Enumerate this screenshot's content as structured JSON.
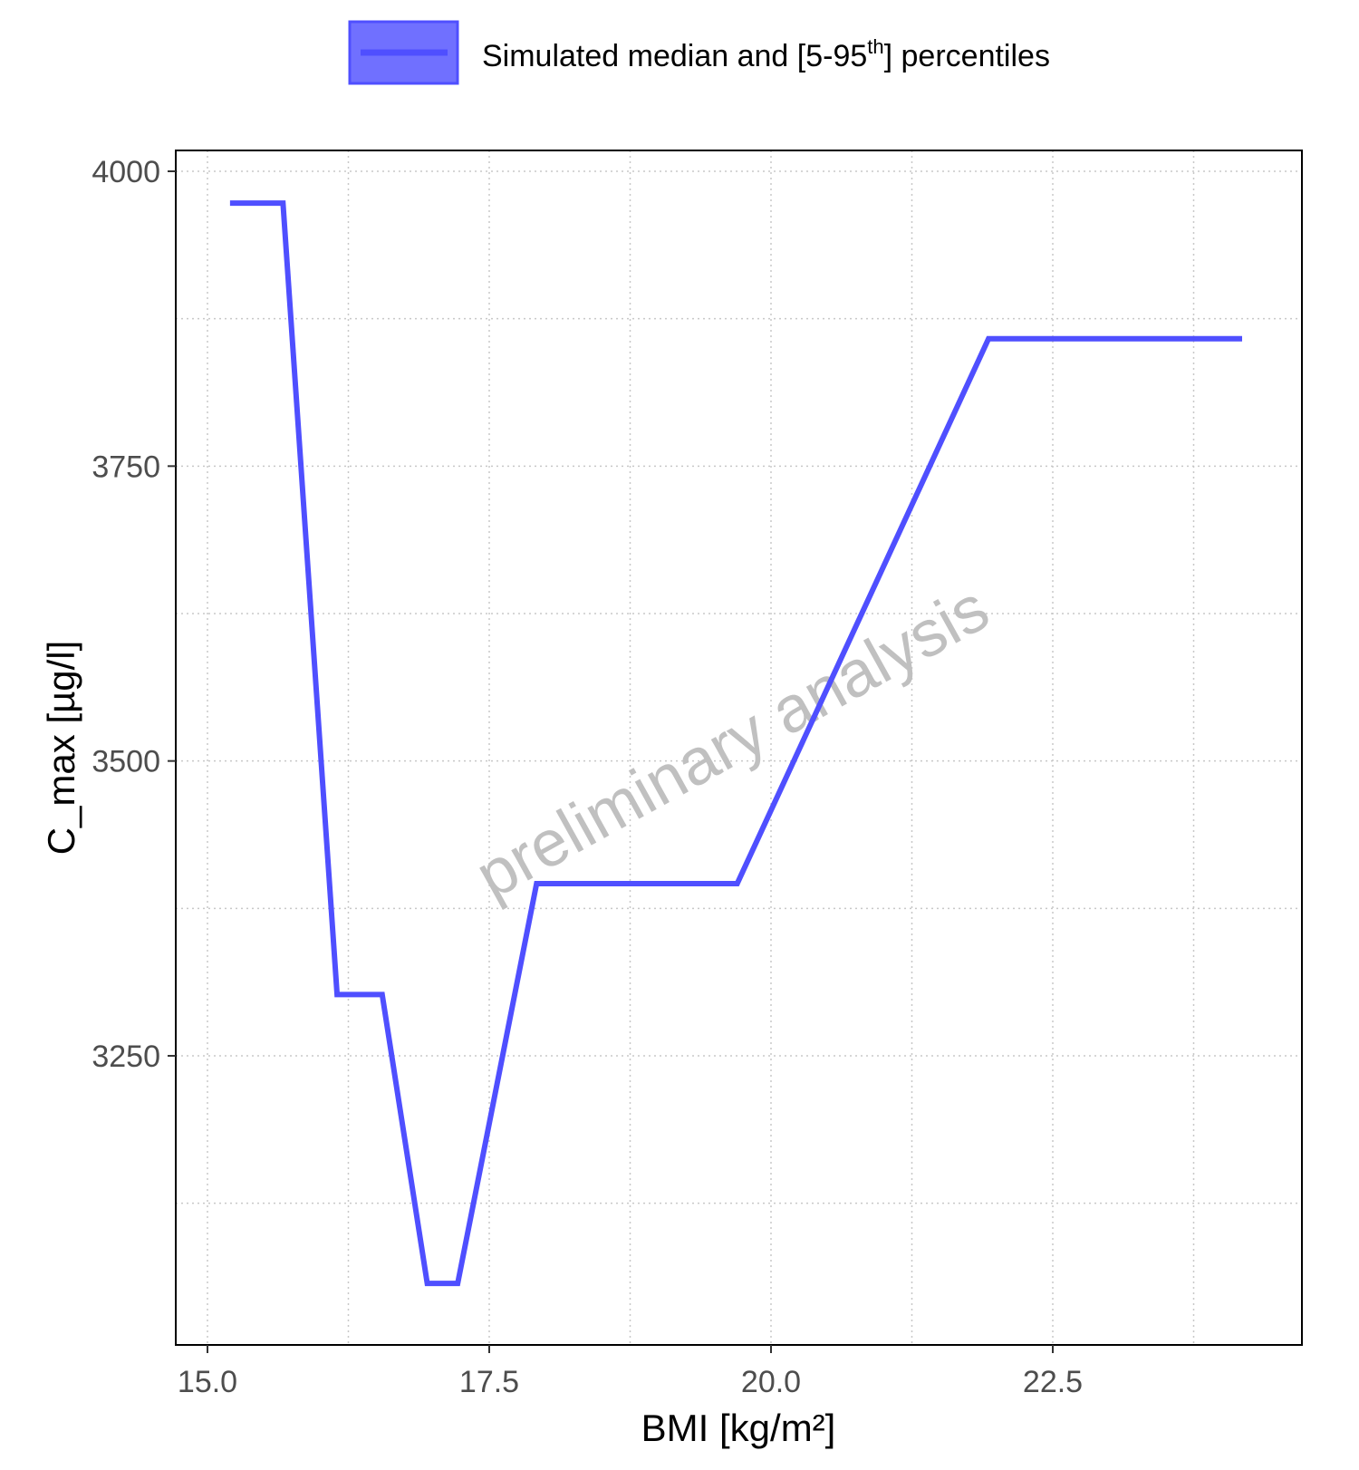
{
  "legend": {
    "label_main": "Simulated median and [5-95",
    "label_sup": "th",
    "label_end": "] percentiles",
    "position": "top",
    "swatch_fill": "#7070ff",
    "swatch_border": "#4f4fff"
  },
  "watermark": "preliminary analysis",
  "colors": {
    "series": "#4f4fff",
    "grid": "#c8c8c8",
    "axis_text": "#4d4d4d",
    "watermark": "#c0c0c0"
  },
  "chart_data": {
    "type": "line",
    "title": "",
    "xlabel": "BMI [kg/m²]",
    "ylabel": "C_max [µg/l]",
    "xlim": [
      14.5,
      24.4
    ],
    "ylim": [
      3015,
      4035
    ],
    "xticks": [
      15.0,
      17.5,
      20.0,
      22.5
    ],
    "xtick_labels": [
      "15.0",
      "17.5",
      "20.0",
      "22.5"
    ],
    "yticks": [
      3250,
      3500,
      3750,
      4000
    ],
    "ytick_labels": [
      "3250",
      "3500",
      "3750",
      "4000"
    ],
    "grid": true,
    "series": [
      {
        "name": "Simulated median and [5-95th] percentiles",
        "x": [
          15.2,
          15.67,
          16.15,
          16.55,
          16.95,
          17.22,
          17.92,
          19.7,
          21.93,
          24.18
        ],
        "y": [
          3973,
          3973,
          3302,
          3302,
          3057,
          3057,
          3396,
          3396,
          3858,
          3858
        ]
      }
    ]
  }
}
